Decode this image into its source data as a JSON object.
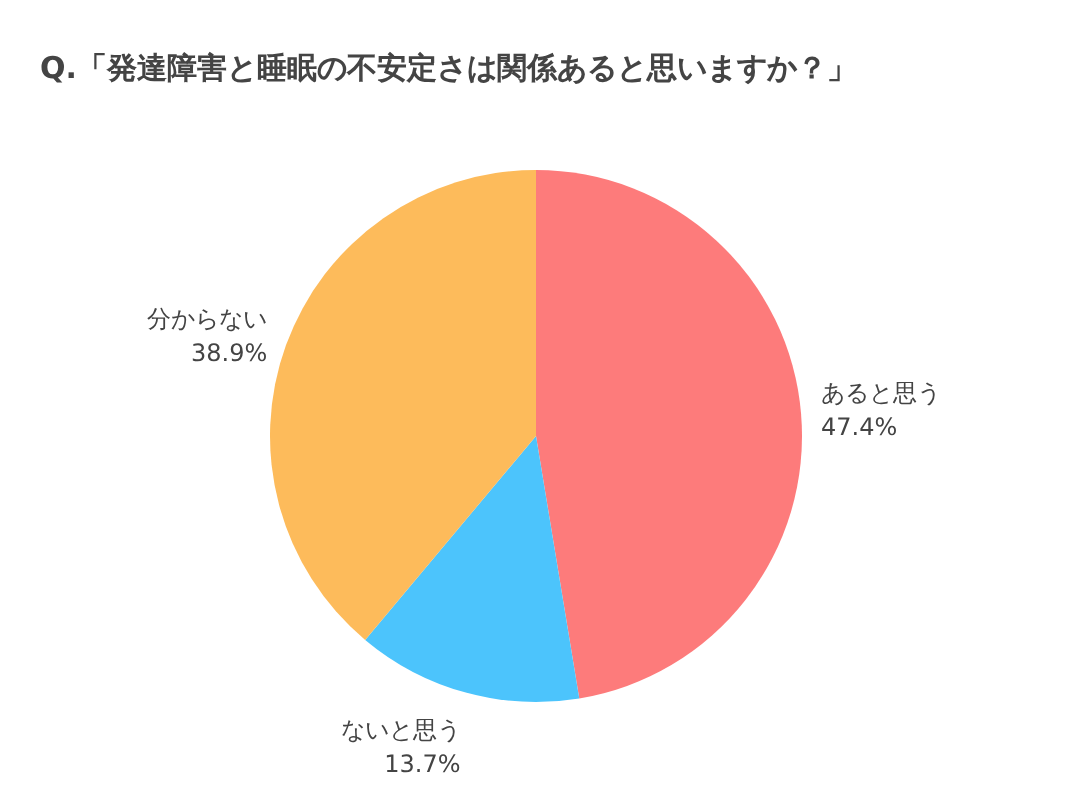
{
  "chart_data": {
    "type": "pie",
    "title": "Q.「発達障害と睡眠の不安定さは関係あると思いますか？」",
    "categories": [
      "あると思う",
      "ないと思う",
      "分からない"
    ],
    "values": [
      47.4,
      13.7,
      38.9
    ],
    "value_labels": [
      "47.4%",
      "13.7%",
      "38.9%"
    ],
    "colors": [
      "#fd7b7b",
      "#4cc4fc",
      "#fdbb5b"
    ],
    "legend": false
  }
}
